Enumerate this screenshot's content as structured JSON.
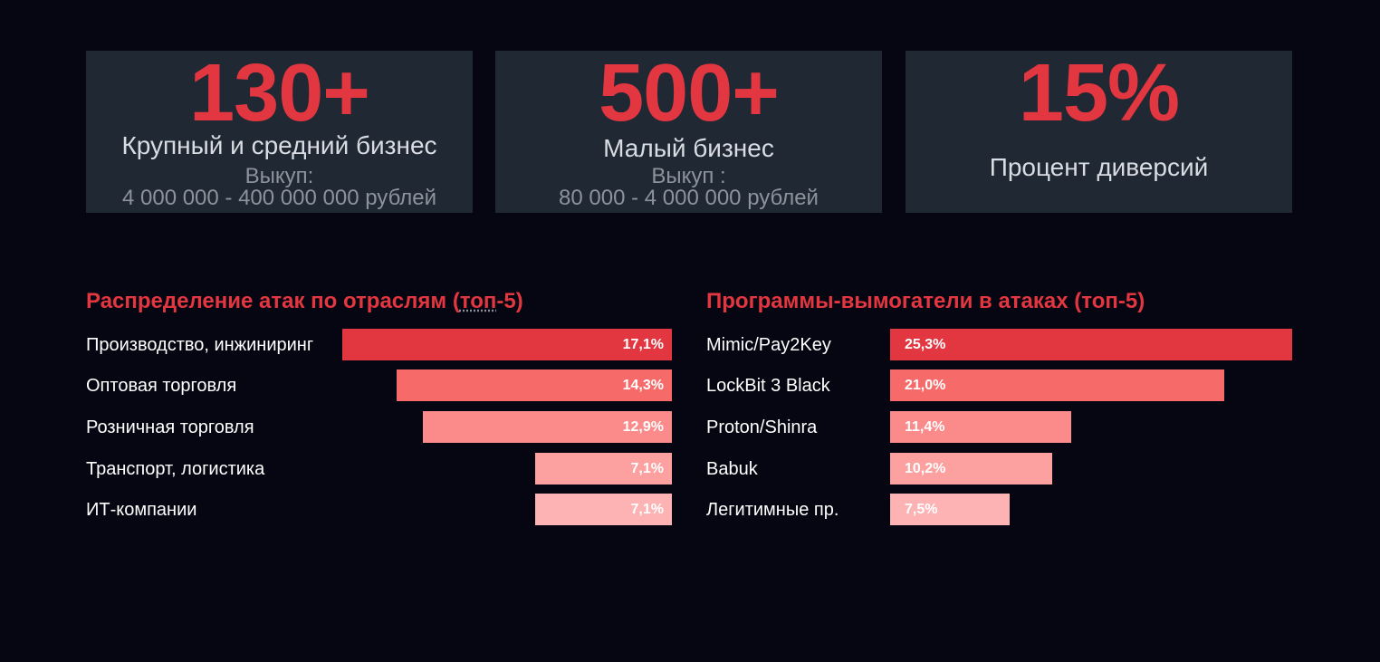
{
  "colors": {
    "background": "#050611",
    "card": "#1f2833",
    "accent": "#e23640",
    "label": "#d9dde3",
    "sublabel": "#8d939c",
    "bar_shades": [
      "#e23640",
      "#f76a6a",
      "#fb8a8a",
      "#fca0a0",
      "#fdb3b3"
    ]
  },
  "stats": [
    {
      "value": "130+",
      "label": "Крупный и средний бизнес",
      "sub1": "Выкуп:",
      "sub2": "4 000 000 - 400 000 000 рублей"
    },
    {
      "value": "500+",
      "label": "Малый бизнес",
      "sub1": "Выкуп :",
      "sub2": "80 000 - 4 000 000 рублей"
    },
    {
      "value": "15%",
      "label": "Процент диверсий"
    }
  ],
  "chart_data": [
    {
      "type": "bar",
      "orientation": "horizontal",
      "title": "Распределение атак по отраслям (топ-5)",
      "title_main": "Распределение атак по отраслям (",
      "title_underlined": "топ",
      "title_tail": "-5)",
      "categories": [
        "Производство, инжиниринг",
        "Оптовая торговля",
        "Розничная торговля",
        "Транспорт, логистика",
        "ИТ-компании"
      ],
      "values": [
        17.1,
        14.3,
        12.9,
        7.1,
        7.1
      ],
      "value_labels": [
        "17,1%",
        "14,3%",
        "12,9%",
        "7,1%",
        "7,1%"
      ],
      "bar_alignment": "right"
    },
    {
      "type": "bar",
      "orientation": "horizontal",
      "title": "Программы-вымогатели в атаках (топ-5)",
      "categories": [
        "Mimic/Pay2Key",
        "LockBit 3 Black",
        "Proton/Shinra",
        "Babuk",
        "Легитимные пр."
      ],
      "values": [
        25.3,
        21.0,
        11.4,
        10.2,
        7.5
      ],
      "value_labels": [
        "25,3%",
        "21,0%",
        "11,4%",
        "10,2%",
        "7,5%"
      ],
      "bar_alignment": "left"
    }
  ]
}
